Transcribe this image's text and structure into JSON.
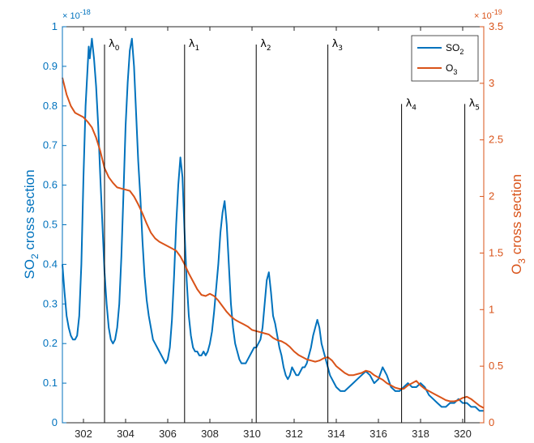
{
  "colors": {
    "so2": "#0072BD",
    "o3": "#D95319",
    "axis": "#262626",
    "marker": "#000000"
  },
  "chart_data": {
    "type": "line",
    "xlim": [
      301,
      321
    ],
    "x_ticks": [
      302,
      304,
      306,
      308,
      310,
      312,
      314,
      316,
      318,
      320
    ],
    "left_axis": {
      "label_main": "SO",
      "label_sub": "2",
      "label_rest": " cross section",
      "multiplier_base": "× 10",
      "multiplier_exp": "-18",
      "ylim": [
        0,
        1
      ],
      "ticks": [
        0,
        0.1,
        0.2,
        0.3,
        0.4,
        0.5,
        0.6,
        0.7,
        0.8,
        0.9,
        1
      ],
      "tick_labels": [
        "0",
        "0.1",
        "0.2",
        "0.3",
        "0.4",
        "0.5",
        "0.6",
        "0.7",
        "0.8",
        "0.9",
        "1"
      ]
    },
    "right_axis": {
      "label_main": "O",
      "label_sub": "3",
      "label_rest": " cross section",
      "multiplier_base": "× 10",
      "multiplier_exp": "-19",
      "ylim": [
        0,
        3.5
      ],
      "ticks": [
        0,
        0.5,
        1,
        1.5,
        2,
        2.5,
        3,
        3.5
      ],
      "tick_labels": [
        "0",
        "0.5",
        "1",
        "1.5",
        "2",
        "2.5",
        "3",
        "3.5"
      ]
    },
    "legend": {
      "placement": "top-right",
      "entries": [
        {
          "main": "SO",
          "sub": "2"
        },
        {
          "main": "O",
          "sub": "3"
        }
      ]
    },
    "wavelength_markers": [
      {
        "label": "λ",
        "sub": "0",
        "x": 303.0,
        "top": 0.955
      },
      {
        "label": "λ",
        "sub": "1",
        "x": 306.8,
        "top": 0.955
      },
      {
        "label": "λ",
        "sub": "2",
        "x": 310.2,
        "top": 0.955
      },
      {
        "label": "λ",
        "sub": "3",
        "x": 313.6,
        "top": 0.955
      },
      {
        "label": "λ",
        "sub": "4",
        "x": 317.1,
        "top": 0.805
      },
      {
        "label": "λ",
        "sub": "5",
        "x": 320.1,
        "top": 0.805
      }
    ],
    "series": [
      {
        "name": "SO2",
        "axis": "left",
        "points": [
          [
            301.0,
            0.4
          ],
          [
            301.1,
            0.33
          ],
          [
            301.2,
            0.27
          ],
          [
            301.3,
            0.24
          ],
          [
            301.4,
            0.22
          ],
          [
            301.5,
            0.21
          ],
          [
            301.6,
            0.21
          ],
          [
            301.7,
            0.22
          ],
          [
            301.8,
            0.27
          ],
          [
            301.9,
            0.4
          ],
          [
            302.0,
            0.62
          ],
          [
            302.1,
            0.8
          ],
          [
            302.2,
            0.9
          ],
          [
            302.25,
            0.95
          ],
          [
            302.3,
            0.92
          ],
          [
            302.4,
            0.97
          ],
          [
            302.5,
            0.92
          ],
          [
            302.6,
            0.85
          ],
          [
            302.7,
            0.75
          ],
          [
            302.8,
            0.62
          ],
          [
            302.9,
            0.5
          ],
          [
            303.0,
            0.38
          ],
          [
            303.1,
            0.3
          ],
          [
            303.2,
            0.24
          ],
          [
            303.3,
            0.21
          ],
          [
            303.4,
            0.2
          ],
          [
            303.5,
            0.21
          ],
          [
            303.6,
            0.24
          ],
          [
            303.7,
            0.3
          ],
          [
            303.8,
            0.42
          ],
          [
            303.9,
            0.58
          ],
          [
            304.0,
            0.75
          ],
          [
            304.1,
            0.86
          ],
          [
            304.2,
            0.94
          ],
          [
            304.3,
            0.97
          ],
          [
            304.4,
            0.9
          ],
          [
            304.5,
            0.78
          ],
          [
            304.6,
            0.66
          ],
          [
            304.7,
            0.57
          ],
          [
            304.8,
            0.46
          ],
          [
            304.9,
            0.37
          ],
          [
            305.0,
            0.31
          ],
          [
            305.1,
            0.27
          ],
          [
            305.2,
            0.24
          ],
          [
            305.3,
            0.21
          ],
          [
            305.4,
            0.2
          ],
          [
            305.5,
            0.19
          ],
          [
            305.6,
            0.18
          ],
          [
            305.7,
            0.17
          ],
          [
            305.8,
            0.16
          ],
          [
            305.9,
            0.15
          ],
          [
            306.0,
            0.16
          ],
          [
            306.1,
            0.19
          ],
          [
            306.2,
            0.26
          ],
          [
            306.3,
            0.37
          ],
          [
            306.4,
            0.5
          ],
          [
            306.5,
            0.6
          ],
          [
            306.6,
            0.67
          ],
          [
            306.7,
            0.62
          ],
          [
            306.8,
            0.48
          ],
          [
            306.9,
            0.36
          ],
          [
            307.0,
            0.27
          ],
          [
            307.1,
            0.22
          ],
          [
            307.2,
            0.19
          ],
          [
            307.3,
            0.18
          ],
          [
            307.4,
            0.18
          ],
          [
            307.5,
            0.17
          ],
          [
            307.6,
            0.17
          ],
          [
            307.7,
            0.18
          ],
          [
            307.8,
            0.17
          ],
          [
            307.9,
            0.18
          ],
          [
            308.0,
            0.2
          ],
          [
            308.1,
            0.23
          ],
          [
            308.2,
            0.28
          ],
          [
            308.3,
            0.34
          ],
          [
            308.4,
            0.4
          ],
          [
            308.5,
            0.48
          ],
          [
            308.6,
            0.53
          ],
          [
            308.7,
            0.56
          ],
          [
            308.8,
            0.5
          ],
          [
            308.9,
            0.4
          ],
          [
            309.0,
            0.3
          ],
          [
            309.1,
            0.24
          ],
          [
            309.2,
            0.2
          ],
          [
            309.3,
            0.18
          ],
          [
            309.4,
            0.16
          ],
          [
            309.5,
            0.15
          ],
          [
            309.6,
            0.15
          ],
          [
            309.7,
            0.15
          ],
          [
            309.8,
            0.16
          ],
          [
            309.9,
            0.17
          ],
          [
            310.0,
            0.18
          ],
          [
            310.1,
            0.19
          ],
          [
            310.2,
            0.19
          ],
          [
            310.3,
            0.2
          ],
          [
            310.4,
            0.21
          ],
          [
            310.5,
            0.24
          ],
          [
            310.6,
            0.3
          ],
          [
            310.7,
            0.36
          ],
          [
            310.8,
            0.38
          ],
          [
            310.9,
            0.33
          ],
          [
            311.0,
            0.27
          ],
          [
            311.1,
            0.25
          ],
          [
            311.2,
            0.22
          ],
          [
            311.3,
            0.19
          ],
          [
            311.4,
            0.17
          ],
          [
            311.5,
            0.14
          ],
          [
            311.6,
            0.12
          ],
          [
            311.7,
            0.11
          ],
          [
            311.8,
            0.12
          ],
          [
            311.9,
            0.14
          ],
          [
            312.0,
            0.13
          ],
          [
            312.1,
            0.12
          ],
          [
            312.2,
            0.12
          ],
          [
            312.3,
            0.13
          ],
          [
            312.4,
            0.14
          ],
          [
            312.5,
            0.14
          ],
          [
            312.6,
            0.15
          ],
          [
            312.7,
            0.17
          ],
          [
            312.8,
            0.19
          ],
          [
            312.9,
            0.22
          ],
          [
            313.0,
            0.24
          ],
          [
            313.1,
            0.26
          ],
          [
            313.2,
            0.24
          ],
          [
            313.3,
            0.2
          ],
          [
            313.4,
            0.18
          ],
          [
            313.5,
            0.16
          ],
          [
            313.6,
            0.14
          ],
          [
            313.7,
            0.12
          ],
          [
            313.8,
            0.11
          ],
          [
            313.9,
            0.1
          ],
          [
            314.0,
            0.09
          ],
          [
            314.2,
            0.08
          ],
          [
            314.4,
            0.08
          ],
          [
            314.6,
            0.09
          ],
          [
            314.8,
            0.1
          ],
          [
            315.0,
            0.11
          ],
          [
            315.2,
            0.12
          ],
          [
            315.4,
            0.13
          ],
          [
            315.6,
            0.12
          ],
          [
            315.8,
            0.1
          ],
          [
            316.0,
            0.11
          ],
          [
            316.2,
            0.14
          ],
          [
            316.4,
            0.12
          ],
          [
            316.6,
            0.09
          ],
          [
            316.8,
            0.08
          ],
          [
            317.0,
            0.08
          ],
          [
            317.2,
            0.09
          ],
          [
            317.4,
            0.1
          ],
          [
            317.6,
            0.09
          ],
          [
            317.8,
            0.09
          ],
          [
            318.0,
            0.1
          ],
          [
            318.2,
            0.09
          ],
          [
            318.4,
            0.07
          ],
          [
            318.6,
            0.06
          ],
          [
            318.8,
            0.05
          ],
          [
            319.0,
            0.04
          ],
          [
            319.2,
            0.04
          ],
          [
            319.4,
            0.05
          ],
          [
            319.6,
            0.05
          ],
          [
            319.8,
            0.06
          ],
          [
            320.0,
            0.05
          ],
          [
            320.2,
            0.05
          ],
          [
            320.4,
            0.04
          ],
          [
            320.6,
            0.04
          ],
          [
            320.8,
            0.03
          ],
          [
            321.0,
            0.03
          ]
        ]
      },
      {
        "name": "O3",
        "axis": "right",
        "points": [
          [
            301.0,
            3.05
          ],
          [
            301.2,
            2.9
          ],
          [
            301.4,
            2.8
          ],
          [
            301.6,
            2.74
          ],
          [
            301.8,
            2.72
          ],
          [
            302.0,
            2.7
          ],
          [
            302.2,
            2.66
          ],
          [
            302.4,
            2.61
          ],
          [
            302.6,
            2.52
          ],
          [
            302.8,
            2.4
          ],
          [
            303.0,
            2.25
          ],
          [
            303.2,
            2.17
          ],
          [
            303.4,
            2.12
          ],
          [
            303.6,
            2.08
          ],
          [
            303.8,
            2.07
          ],
          [
            304.0,
            2.06
          ],
          [
            304.2,
            2.05
          ],
          [
            304.4,
            2.0
          ],
          [
            304.6,
            1.93
          ],
          [
            304.8,
            1.85
          ],
          [
            305.0,
            1.76
          ],
          [
            305.2,
            1.68
          ],
          [
            305.4,
            1.63
          ],
          [
            305.6,
            1.6
          ],
          [
            305.8,
            1.58
          ],
          [
            306.0,
            1.56
          ],
          [
            306.2,
            1.54
          ],
          [
            306.4,
            1.52
          ],
          [
            306.6,
            1.47
          ],
          [
            306.8,
            1.4
          ],
          [
            307.0,
            1.32
          ],
          [
            307.2,
            1.25
          ],
          [
            307.4,
            1.18
          ],
          [
            307.6,
            1.13
          ],
          [
            307.8,
            1.12
          ],
          [
            308.0,
            1.14
          ],
          [
            308.2,
            1.12
          ],
          [
            308.4,
            1.08
          ],
          [
            308.6,
            1.03
          ],
          [
            308.8,
            0.98
          ],
          [
            309.0,
            0.94
          ],
          [
            309.2,
            0.91
          ],
          [
            309.4,
            0.89
          ],
          [
            309.6,
            0.87
          ],
          [
            309.8,
            0.85
          ],
          [
            310.0,
            0.82
          ],
          [
            310.2,
            0.81
          ],
          [
            310.4,
            0.8
          ],
          [
            310.6,
            0.79
          ],
          [
            310.8,
            0.78
          ],
          [
            311.0,
            0.75
          ],
          [
            311.2,
            0.73
          ],
          [
            311.4,
            0.72
          ],
          [
            311.6,
            0.7
          ],
          [
            311.8,
            0.67
          ],
          [
            312.0,
            0.63
          ],
          [
            312.2,
            0.6
          ],
          [
            312.4,
            0.58
          ],
          [
            312.6,
            0.56
          ],
          [
            312.8,
            0.55
          ],
          [
            313.0,
            0.54
          ],
          [
            313.2,
            0.55
          ],
          [
            313.4,
            0.57
          ],
          [
            313.6,
            0.58
          ],
          [
            313.8,
            0.55
          ],
          [
            314.0,
            0.5
          ],
          [
            314.2,
            0.47
          ],
          [
            314.4,
            0.44
          ],
          [
            314.6,
            0.42
          ],
          [
            314.8,
            0.42
          ],
          [
            315.0,
            0.43
          ],
          [
            315.2,
            0.44
          ],
          [
            315.4,
            0.46
          ],
          [
            315.6,
            0.45
          ],
          [
            315.8,
            0.42
          ],
          [
            316.0,
            0.4
          ],
          [
            316.2,
            0.38
          ],
          [
            316.4,
            0.35
          ],
          [
            316.6,
            0.33
          ],
          [
            316.8,
            0.31
          ],
          [
            317.0,
            0.3
          ],
          [
            317.2,
            0.3
          ],
          [
            317.4,
            0.33
          ],
          [
            317.6,
            0.35
          ],
          [
            317.8,
            0.37
          ],
          [
            318.0,
            0.33
          ],
          [
            318.2,
            0.3
          ],
          [
            318.4,
            0.28
          ],
          [
            318.6,
            0.26
          ],
          [
            318.8,
            0.24
          ],
          [
            319.0,
            0.22
          ],
          [
            319.2,
            0.2
          ],
          [
            319.4,
            0.19
          ],
          [
            319.6,
            0.19
          ],
          [
            319.8,
            0.2
          ],
          [
            320.0,
            0.22
          ],
          [
            320.2,
            0.23
          ],
          [
            320.4,
            0.21
          ],
          [
            320.6,
            0.18
          ],
          [
            320.8,
            0.15
          ],
          [
            321.0,
            0.13
          ]
        ]
      }
    ]
  }
}
